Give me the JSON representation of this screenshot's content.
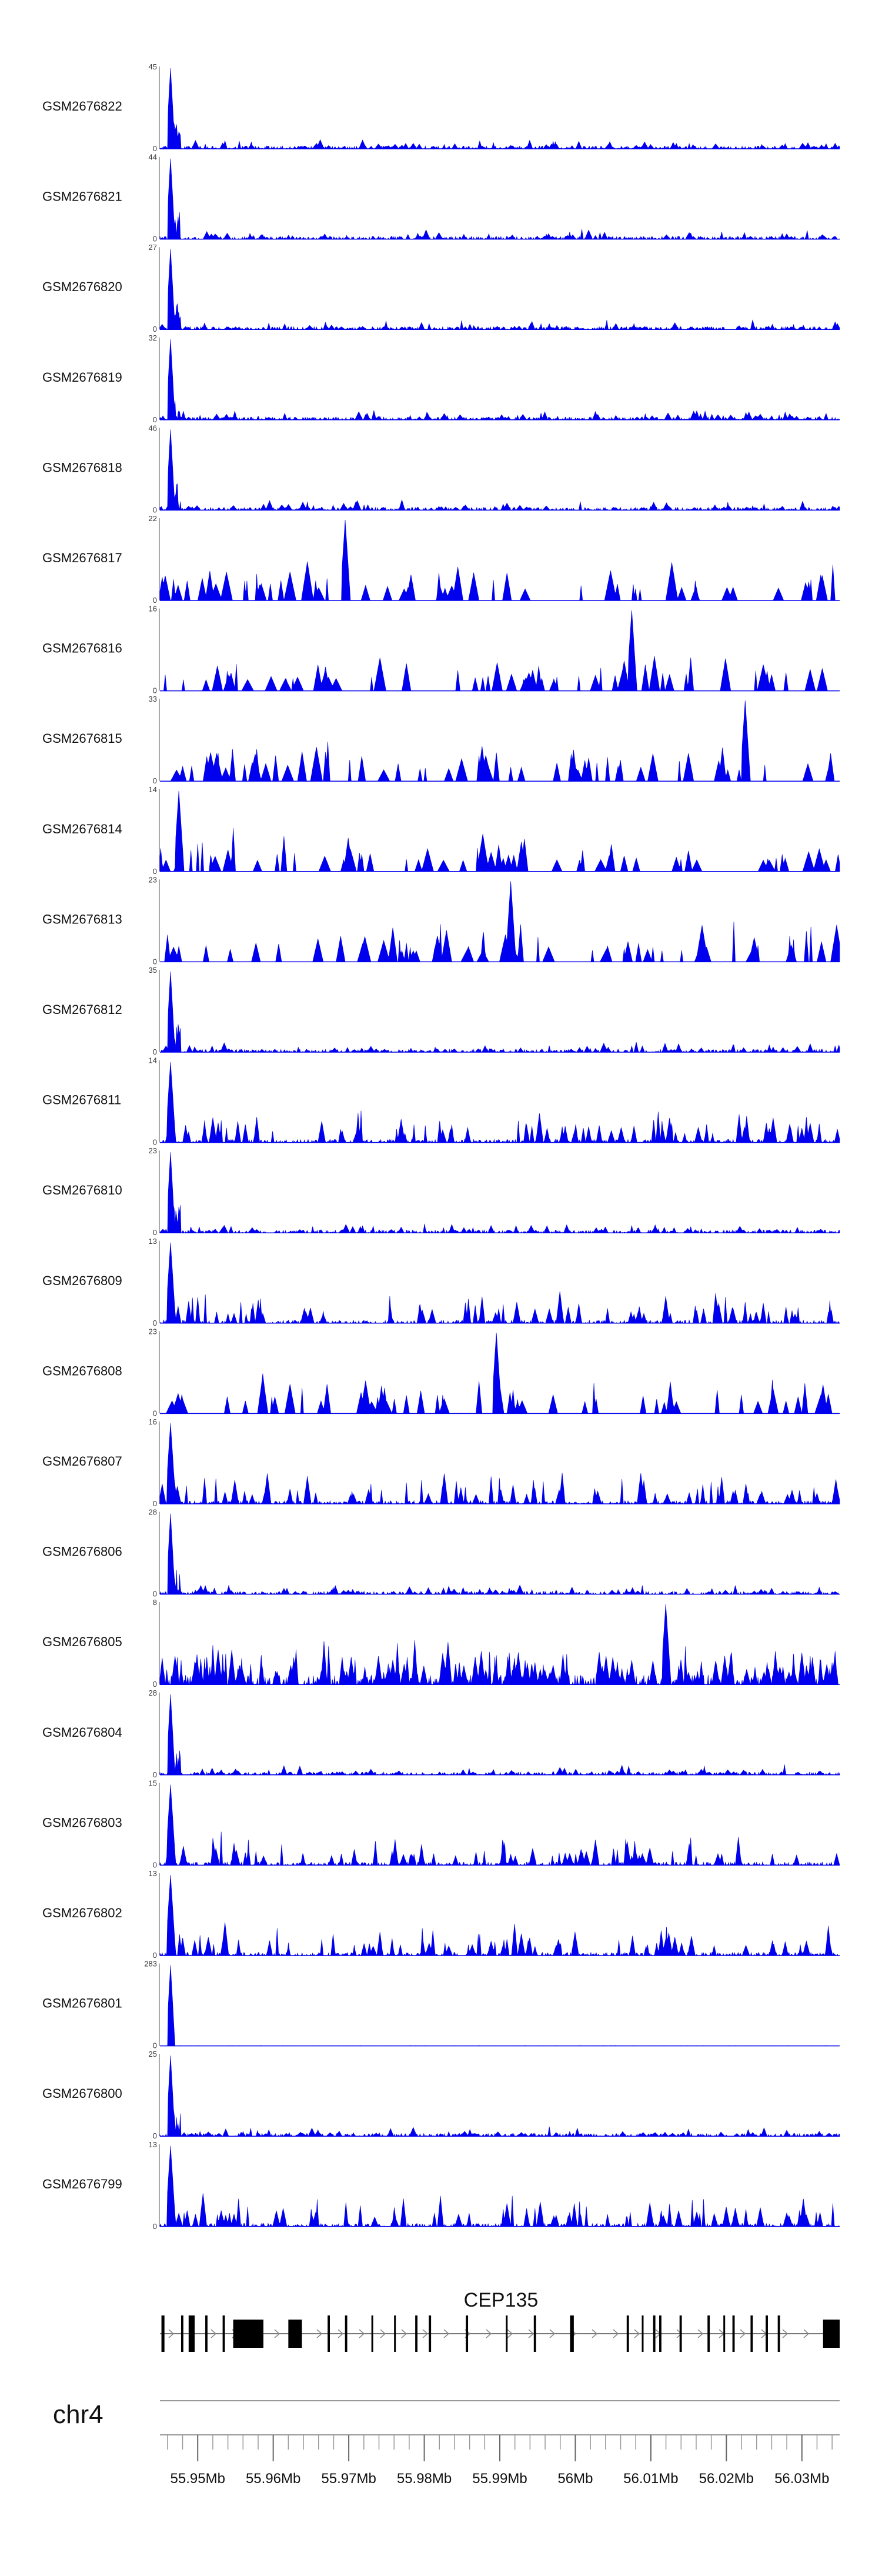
{
  "chart_data": {
    "type": "area",
    "title": "",
    "chromosome": "chr4",
    "xlim": [
      55.945,
      56.035
    ],
    "x_unit": "Mb",
    "x_ticks": [
      "55.95Mb",
      "55.96Mb",
      "55.97Mb",
      "55.98Mb",
      "55.99Mb",
      "56Mb",
      "56.01Mb",
      "56.02Mb",
      "56.03Mb"
    ],
    "x_tick_values": [
      55.95,
      55.96,
      55.97,
      55.98,
      55.99,
      56.0,
      56.01,
      56.02,
      56.03
    ],
    "series_color": "#0000ee",
    "series": [
      {
        "name": "GSM2676822",
        "ymax": 45,
        "ymin_label": "0",
        "ymax_label": "45",
        "peak_x": 55.9464,
        "profile": "spike"
      },
      {
        "name": "GSM2676821",
        "ymax": 44,
        "ymin_label": "0",
        "ymax_label": "44",
        "peak_x": 55.9464,
        "profile": "spike"
      },
      {
        "name": "GSM2676820",
        "ymax": 27,
        "ymin_label": "0",
        "ymax_label": "27",
        "peak_x": 55.9464,
        "profile": "spike"
      },
      {
        "name": "GSM2676819",
        "ymax": 32,
        "ymin_label": "0",
        "ymax_label": "32",
        "peak_x": 55.9464,
        "profile": "spike"
      },
      {
        "name": "GSM2676818",
        "ymax": 46,
        "ymin_label": "0",
        "ymax_label": "46",
        "peak_x": 55.9464,
        "profile": "spike"
      },
      {
        "name": "GSM2676817",
        "ymax": 22,
        "ymin_label": "0",
        "ymax_label": "22",
        "peak_x": 55.9695,
        "profile": "sparse"
      },
      {
        "name": "GSM2676816",
        "ymax": 16,
        "ymin_label": "0",
        "ymax_label": "16",
        "peak_x": 56.0075,
        "profile": "sparse"
      },
      {
        "name": "GSM2676815",
        "ymax": 33,
        "ymin_label": "0",
        "ymax_label": "33",
        "peak_x": 56.0225,
        "profile": "sparse"
      },
      {
        "name": "GSM2676814",
        "ymax": 14,
        "ymin_label": "0",
        "ymax_label": "14",
        "peak_x": 55.9475,
        "profile": "sparse"
      },
      {
        "name": "GSM2676813",
        "ymax": 23,
        "ymin_label": "0",
        "ymax_label": "23",
        "peak_x": 55.9915,
        "profile": "sparse"
      },
      {
        "name": "GSM2676812",
        "ymax": 35,
        "ymin_label": "0",
        "ymax_label": "35",
        "peak_x": 55.9464,
        "profile": "spike"
      },
      {
        "name": "GSM2676811",
        "ymax": 14,
        "ymin_label": "0",
        "ymax_label": "14",
        "peak_x": 55.9464,
        "profile": "medium"
      },
      {
        "name": "GSM2676810",
        "ymax": 23,
        "ymin_label": "0",
        "ymax_label": "23",
        "peak_x": 55.9464,
        "profile": "spike"
      },
      {
        "name": "GSM2676809",
        "ymax": 13,
        "ymin_label": "0",
        "ymax_label": "13",
        "peak_x": 55.9464,
        "profile": "medium"
      },
      {
        "name": "GSM2676808",
        "ymax": 23,
        "ymin_label": "0",
        "ymax_label": "23",
        "peak_x": 55.9895,
        "profile": "sparse"
      },
      {
        "name": "GSM2676807",
        "ymax": 16,
        "ymin_label": "0",
        "ymax_label": "16",
        "peak_x": 55.9464,
        "profile": "medium"
      },
      {
        "name": "GSM2676806",
        "ymax": 28,
        "ymin_label": "0",
        "ymax_label": "28",
        "peak_x": 55.9464,
        "profile": "spike"
      },
      {
        "name": "GSM2676805",
        "ymax": 8,
        "ymin_label": "0",
        "ymax_label": "8",
        "peak_x": 56.012,
        "profile": "dense"
      },
      {
        "name": "GSM2676804",
        "ymax": 28,
        "ymin_label": "0",
        "ymax_label": "28",
        "peak_x": 55.9464,
        "profile": "spike"
      },
      {
        "name": "GSM2676803",
        "ymax": 15,
        "ymin_label": "0",
        "ymax_label": "15",
        "peak_x": 55.9464,
        "profile": "medium"
      },
      {
        "name": "GSM2676802",
        "ymax": 13,
        "ymin_label": "0",
        "ymax_label": "13",
        "peak_x": 55.9464,
        "profile": "medium"
      },
      {
        "name": "GSM2676801",
        "ymax": 283,
        "ymin_label": "0",
        "ymax_label": "283",
        "peak_x": 55.9464,
        "profile": "extreme"
      },
      {
        "name": "GSM2676800",
        "ymax": 25,
        "ymin_label": "0",
        "ymax_label": "25",
        "peak_x": 55.9464,
        "profile": "spike"
      },
      {
        "name": "GSM2676799",
        "ymax": 13,
        "ymin_label": "0",
        "ymax_label": "13",
        "peak_x": 55.9464,
        "profile": "medium"
      }
    ],
    "gene": {
      "name": "CEP135",
      "start": 55.945,
      "end": 56.035,
      "strand": "+",
      "exons": [
        [
          55.9452,
          55.9456
        ],
        [
          55.9478,
          55.9481
        ],
        [
          55.9488,
          55.9496
        ],
        [
          55.951,
          55.9513
        ],
        [
          55.9533,
          55.9536
        ],
        [
          55.9547,
          55.9587
        ],
        [
          55.962,
          55.9638
        ],
        [
          55.9672,
          55.9675
        ],
        [
          55.9695,
          55.9698
        ],
        [
          55.973,
          55.9732
        ],
        [
          55.976,
          55.9762
        ],
        [
          55.9788,
          55.9791
        ],
        [
          55.9806,
          55.9809
        ],
        [
          55.9855,
          55.9858
        ],
        [
          55.9908,
          55.991
        ],
        [
          55.9945,
          55.9948
        ],
        [
          55.9993,
          55.9998
        ],
        [
          56.0068,
          56.0071
        ],
        [
          56.0088,
          56.009
        ],
        [
          56.0103,
          56.0106
        ],
        [
          56.0111,
          56.0114
        ],
        [
          56.0138,
          56.0141
        ],
        [
          56.0175,
          56.0178
        ],
        [
          56.0196,
          56.0198
        ],
        [
          56.0208,
          56.0211
        ],
        [
          56.0232,
          56.0235
        ],
        [
          56.0252,
          56.0255
        ],
        [
          56.0268,
          56.0271
        ],
        [
          56.0328,
          56.035
        ]
      ]
    }
  }
}
